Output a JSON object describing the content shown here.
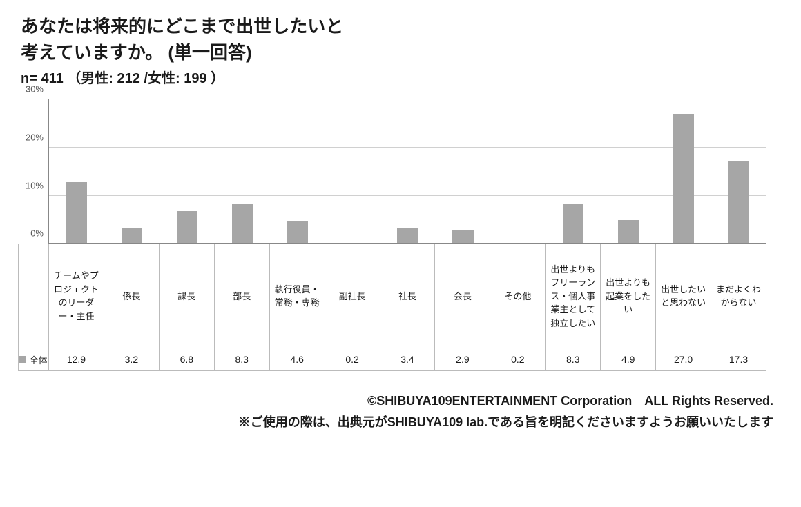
{
  "title_line1": "あなたは将来的にどこまで出世したいと",
  "title_line2": "考えていますか。 (単一回答)",
  "subtitle": "n= 411 （男性: 212 /女性: 199 ）",
  "chart": {
    "type": "bar",
    "ylim": [
      0,
      30
    ],
    "ytick_step": 10,
    "ytick_labels": [
      "0%",
      "10%",
      "20%",
      "30%"
    ],
    "bar_color": "#a6a6a6",
    "grid_color": "#d0d0d0",
    "axis_color": "#888888",
    "background_color": "#ffffff",
    "label_fontsize": 13,
    "value_fontsize": 14,
    "legend_label": "全体",
    "categories": [
      "チームやプロジェクトのリーダー・主任",
      "係長",
      "課長",
      "部長",
      "執行役員・常務・専務",
      "副社長",
      "社長",
      "会長",
      "その他",
      "出世よりもフリーランス・個人事業主として独立したい",
      "出世よりも起業をしたい",
      "出世したいと思わない",
      "まだよくわからない"
    ],
    "values": [
      12.9,
      3.2,
      6.8,
      8.3,
      4.6,
      0.2,
      3.4,
      2.9,
      0.2,
      8.3,
      4.9,
      27.0,
      17.3
    ],
    "value_labels": [
      "12.9",
      "3.2",
      "6.8",
      "8.3",
      "4.6",
      "0.2",
      "3.4",
      "2.9",
      "0.2",
      "8.3",
      "4.9",
      "27.0",
      "17.3"
    ]
  },
  "footer_line1": "©SHIBUYA109ENTERTAINMENT Corporation　ALL Rights Reserved.",
  "footer_line2": "※ご使用の際は、出典元がSHIBUYA109 lab.である旨を明記くださいますようお願いいたします"
}
